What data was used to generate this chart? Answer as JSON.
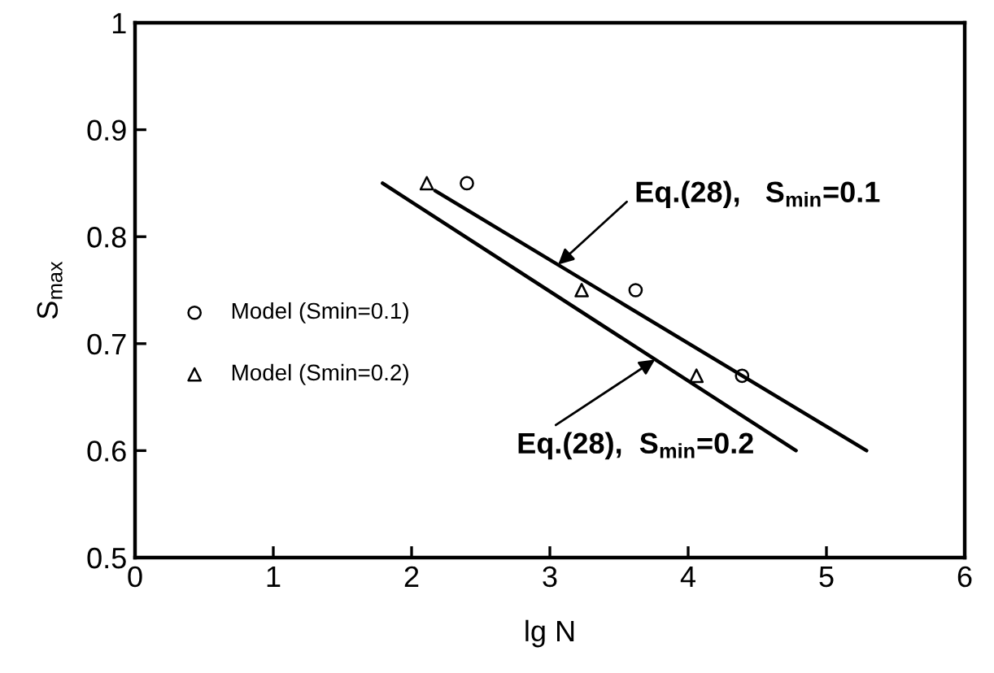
{
  "chart_data": {
    "type": "scatter",
    "xlabel": "lg N",
    "ylabel": "S$_{max}$",
    "xlim": [
      0,
      6
    ],
    "ylim": [
      0.5,
      1
    ],
    "xticks": [
      0,
      1,
      2,
      3,
      4,
      5,
      6
    ],
    "yticks": [
      0.5,
      0.6,
      0.7,
      0.8,
      0.9,
      1
    ],
    "grid": false,
    "legend": "left",
    "series": [
      {
        "name": "Model (Smin=0.1)",
        "marker": "circle",
        "color": "#000000",
        "x": [
          2.4,
          3.62,
          4.39
        ],
        "values": [
          0.85,
          0.75,
          0.67
        ]
      },
      {
        "name": "Model (Smin=0.2)",
        "marker": "triangle",
        "color": "#000000",
        "x": [
          2.11,
          3.23,
          4.06
        ],
        "values": [
          0.85,
          0.75,
          0.67
        ]
      },
      {
        "type": "line",
        "marker": "none",
        "line_style": "solid",
        "color": "#000000",
        "x": [
          2.17,
          5.29
        ],
        "values": [
          0.843,
          0.6
        ]
      },
      {
        "type": "line",
        "marker": "none",
        "line_style": "solid",
        "color": "#000000",
        "x": [
          1.79,
          4.78
        ],
        "values": [
          0.85,
          0.6
        ]
      }
    ],
    "annotations": [
      {
        "text": "Eq.(28),   S$_{min}$=0.1",
        "x": 3.06,
        "y": 0.774
      },
      {
        "text": "Eq.(28),  S$_{min}$=0.2",
        "x": 3.76,
        "y": 0.685
      }
    ]
  }
}
